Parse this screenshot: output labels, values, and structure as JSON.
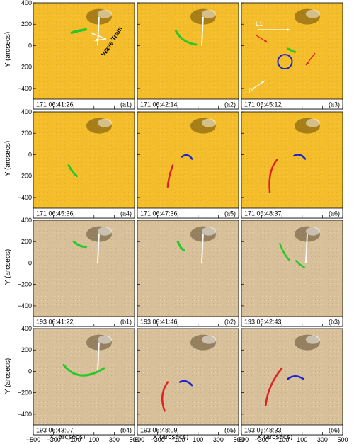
{
  "figure": {
    "axis_x_label": "X (arcsecs)",
    "axis_y_label": "Y (arcsecs)",
    "x_ticks": [
      "−500",
      "−300",
      "−100",
      "100",
      "300",
      "500"
    ],
    "y_ticks": [
      "400",
      "200",
      "0",
      "−200",
      "−400"
    ],
    "annotations": {
      "wave_train": "Wave Train",
      "l1": "L1",
      "p": "P"
    },
    "colors": {
      "aia171": "#f3bd2b",
      "aia193": "#d7c09a",
      "green": "#28c828",
      "red": "#e0201e",
      "blue": "#1c26d0",
      "white": "#ffffff"
    },
    "panels": [
      {
        "id": "a1",
        "wavelength": "171",
        "time": "06:41:26",
        "tag": "(a1)"
      },
      {
        "id": "a2",
        "wavelength": "171",
        "time": "06:42:14",
        "tag": "(a2)"
      },
      {
        "id": "a3",
        "wavelength": "171",
        "time": "06:45:12",
        "tag": "(a3)"
      },
      {
        "id": "a4",
        "wavelength": "171",
        "time": "06:45:36",
        "tag": "(a4)"
      },
      {
        "id": "a5",
        "wavelength": "171",
        "time": "06:47:36",
        "tag": "(a5)"
      },
      {
        "id": "a6",
        "wavelength": "171",
        "time": "06:48:37",
        "tag": "(a6)"
      },
      {
        "id": "b1",
        "wavelength": "193",
        "time": "06:41:22",
        "tag": "(b1)"
      },
      {
        "id": "b2",
        "wavelength": "193",
        "time": "06:41:46",
        "tag": "(b2)"
      },
      {
        "id": "b3",
        "wavelength": "193",
        "time": "06:42:43",
        "tag": "(b3)"
      },
      {
        "id": "b4",
        "wavelength": "193",
        "time": "06:43:07",
        "tag": "(b4)"
      },
      {
        "id": "b5",
        "wavelength": "193",
        "time": "06:48:09",
        "tag": "(b5)"
      },
      {
        "id": "b6",
        "wavelength": "193",
        "time": "06:48:33",
        "tag": "(b6)"
      }
    ]
  }
}
